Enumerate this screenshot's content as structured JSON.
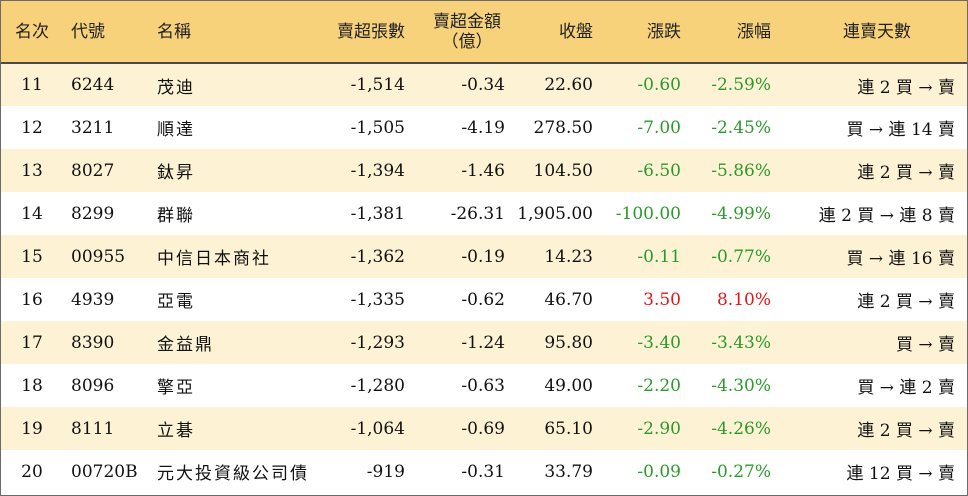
{
  "headers": {
    "rank": "名次",
    "code": "代號",
    "name": "名稱",
    "net_sell_shares": "賣超張數",
    "net_sell_amount_line1": "賣超金額",
    "net_sell_amount_line2": "（億）",
    "close": "收盤",
    "change": "漲跌",
    "change_pct": "漲幅",
    "streak": "連賣天數"
  },
  "rows": [
    {
      "rank": "11",
      "code": "6244",
      "name": "茂迪",
      "shares": "-1,514",
      "amount": "-0.34",
      "close": "22.60",
      "change": "-0.60",
      "pct": "-2.59%",
      "streak": "連 2 買 → 賣",
      "dir": "down"
    },
    {
      "rank": "12",
      "code": "3211",
      "name": "順達",
      "shares": "-1,505",
      "amount": "-4.19",
      "close": "278.50",
      "change": "-7.00",
      "pct": "-2.45%",
      "streak": "買 → 連 14 賣",
      "dir": "down"
    },
    {
      "rank": "13",
      "code": "8027",
      "name": "鈦昇",
      "shares": "-1,394",
      "amount": "-1.46",
      "close": "104.50",
      "change": "-6.50",
      "pct": "-5.86%",
      "streak": "連 2 買 → 賣",
      "dir": "down"
    },
    {
      "rank": "14",
      "code": "8299",
      "name": "群聯",
      "shares": "-1,381",
      "amount": "-26.31",
      "close": "1,905.00",
      "change": "-100.00",
      "pct": "-4.99%",
      "streak": "連 2 買 → 連 8 賣",
      "dir": "down"
    },
    {
      "rank": "15",
      "code": "00955",
      "name": "中信日本商社",
      "shares": "-1,362",
      "amount": "-0.19",
      "close": "14.23",
      "change": "-0.11",
      "pct": "-0.77%",
      "streak": "買 → 連 16 賣",
      "dir": "down"
    },
    {
      "rank": "16",
      "code": "4939",
      "name": "亞電",
      "shares": "-1,335",
      "amount": "-0.62",
      "close": "46.70",
      "change": "3.50",
      "pct": "8.10%",
      "streak": "連 2 買 → 賣",
      "dir": "up"
    },
    {
      "rank": "17",
      "code": "8390",
      "name": "金益鼎",
      "shares": "-1,293",
      "amount": "-1.24",
      "close": "95.80",
      "change": "-3.40",
      "pct": "-3.43%",
      "streak": "買 → 賣",
      "dir": "down"
    },
    {
      "rank": "18",
      "code": "8096",
      "name": "擎亞",
      "shares": "-1,280",
      "amount": "-0.63",
      "close": "49.00",
      "change": "-2.20",
      "pct": "-4.30%",
      "streak": "買 → 連 2 賣",
      "dir": "down"
    },
    {
      "rank": "19",
      "code": "8111",
      "name": "立碁",
      "shares": "-1,064",
      "amount": "-0.69",
      "close": "65.10",
      "change": "-2.90",
      "pct": "-4.26%",
      "streak": "連 2 買 → 賣",
      "dir": "down"
    },
    {
      "rank": "20",
      "code": "00720B",
      "name": "元大投資級公司債",
      "shares": "-919",
      "amount": "-0.31",
      "close": "33.79",
      "change": "-0.09",
      "pct": "-0.27%",
      "streak": "連 12 買 → 賣",
      "dir": "down"
    }
  ],
  "colors": {
    "header_bg": "#f7d27a",
    "stripe_bg": "#fdf2d4",
    "down": "#2b9a2b",
    "up": "#e0161b"
  }
}
